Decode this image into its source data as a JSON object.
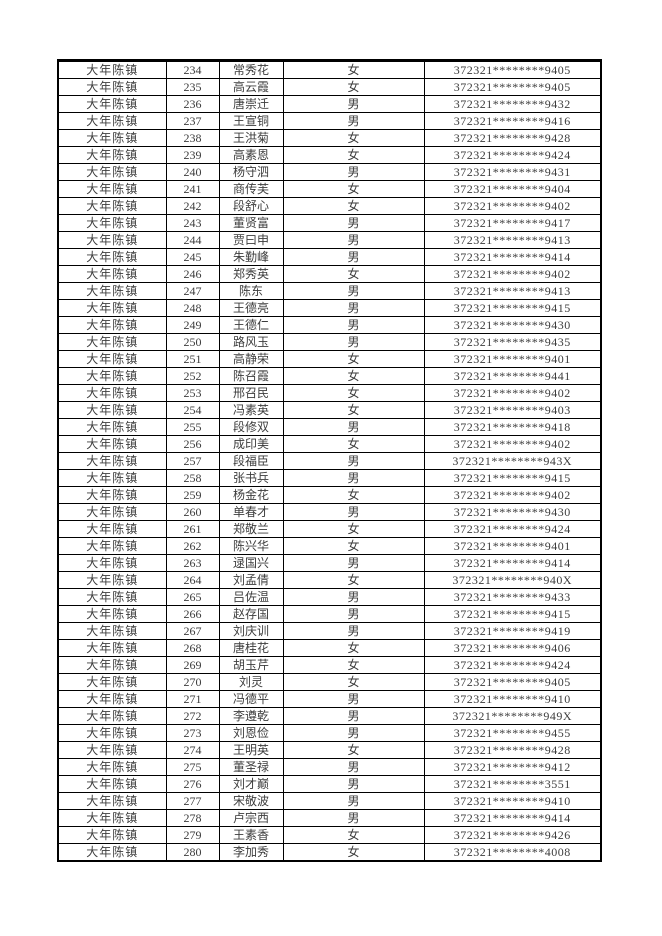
{
  "document": {
    "type": "scanned-roster-table",
    "town": "大年陈镇",
    "id_prefix": "372321",
    "id_mask": "********",
    "text_color": "#3d3d3d",
    "border_color": "#000000",
    "background_color": "#ffffff"
  },
  "table": {
    "columns": [
      "town",
      "serial",
      "name",
      "gender",
      "id_masked"
    ],
    "rows": [
      {
        "town": "大年陈镇",
        "no": "234",
        "name": "常秀花",
        "gender": "女",
        "id_masked": "372321********9405"
      },
      {
        "town": "大年陈镇",
        "no": "235",
        "name": "高云霞",
        "gender": "女",
        "id_masked": "372321********9405"
      },
      {
        "town": "大年陈镇",
        "no": "236",
        "name": "唐崇迁",
        "gender": "男",
        "id_masked": "372321********9432"
      },
      {
        "town": "大年陈镇",
        "no": "237",
        "name": "王宣铜",
        "gender": "男",
        "id_masked": "372321********9416"
      },
      {
        "town": "大年陈镇",
        "no": "238",
        "name": "王洪菊",
        "gender": "女",
        "id_masked": "372321********9428"
      },
      {
        "town": "大年陈镇",
        "no": "239",
        "name": "高素恩",
        "gender": "女",
        "id_masked": "372321********9424"
      },
      {
        "town": "大年陈镇",
        "no": "240",
        "name": "杨守泗",
        "gender": "男",
        "id_masked": "372321********9431"
      },
      {
        "town": "大年陈镇",
        "no": "241",
        "name": "商传芙",
        "gender": "女",
        "id_masked": "372321********9404"
      },
      {
        "town": "大年陈镇",
        "no": "242",
        "name": "段舒心",
        "gender": "女",
        "id_masked": "372321********9402"
      },
      {
        "town": "大年陈镇",
        "no": "243",
        "name": "董贤富",
        "gender": "男",
        "id_masked": "372321********9417"
      },
      {
        "town": "大年陈镇",
        "no": "244",
        "name": "贾曰申",
        "gender": "男",
        "id_masked": "372321********9413"
      },
      {
        "town": "大年陈镇",
        "no": "245",
        "name": "朱勤峰",
        "gender": "男",
        "id_masked": "372321********9414"
      },
      {
        "town": "大年陈镇",
        "no": "246",
        "name": "郑秀英",
        "gender": "女",
        "id_masked": "372321********9402"
      },
      {
        "town": "大年陈镇",
        "no": "247",
        "name": "陈东",
        "gender": "男",
        "id_masked": "372321********9413"
      },
      {
        "town": "大年陈镇",
        "no": "248",
        "name": "王德亮",
        "gender": "男",
        "id_masked": "372321********9415"
      },
      {
        "town": "大年陈镇",
        "no": "249",
        "name": "王德仁",
        "gender": "男",
        "id_masked": "372321********9430"
      },
      {
        "town": "大年陈镇",
        "no": "250",
        "name": "路风玉",
        "gender": "男",
        "id_masked": "372321********9435"
      },
      {
        "town": "大年陈镇",
        "no": "251",
        "name": "高静荣",
        "gender": "女",
        "id_masked": "372321********9401"
      },
      {
        "town": "大年陈镇",
        "no": "252",
        "name": "陈召霞",
        "gender": "女",
        "id_masked": "372321********9441"
      },
      {
        "town": "大年陈镇",
        "no": "253",
        "name": "邢召民",
        "gender": "女",
        "id_masked": "372321********9402"
      },
      {
        "town": "大年陈镇",
        "no": "254",
        "name": "冯素英",
        "gender": "女",
        "id_masked": "372321********9403"
      },
      {
        "town": "大年陈镇",
        "no": "255",
        "name": "段修双",
        "gender": "男",
        "id_masked": "372321********9418"
      },
      {
        "town": "大年陈镇",
        "no": "256",
        "name": "成印美",
        "gender": "女",
        "id_masked": "372321********9402"
      },
      {
        "town": "大年陈镇",
        "no": "257",
        "name": "段福臣",
        "gender": "男",
        "id_masked": "372321********943X"
      },
      {
        "town": "大年陈镇",
        "no": "258",
        "name": "张书兵",
        "gender": "男",
        "id_masked": "372321********9415"
      },
      {
        "town": "大年陈镇",
        "no": "259",
        "name": "杨金花",
        "gender": "女",
        "id_masked": "372321********9402"
      },
      {
        "town": "大年陈镇",
        "no": "260",
        "name": "单春才",
        "gender": "男",
        "id_masked": "372321********9430"
      },
      {
        "town": "大年陈镇",
        "no": "261",
        "name": "郑敬兰",
        "gender": "女",
        "id_masked": "372321********9424"
      },
      {
        "town": "大年陈镇",
        "no": "262",
        "name": "陈兴华",
        "gender": "女",
        "id_masked": "372321********9401"
      },
      {
        "town": "大年陈镇",
        "no": "263",
        "name": "逯国兴",
        "gender": "男",
        "id_masked": "372321********9414"
      },
      {
        "town": "大年陈镇",
        "no": "264",
        "name": "刘孟倩",
        "gender": "女",
        "id_masked": "372321********940X"
      },
      {
        "town": "大年陈镇",
        "no": "265",
        "name": "吕佐温",
        "gender": "男",
        "id_masked": "372321********9433"
      },
      {
        "town": "大年陈镇",
        "no": "266",
        "name": "赵存国",
        "gender": "男",
        "id_masked": "372321********9415"
      },
      {
        "town": "大年陈镇",
        "no": "267",
        "name": "刘庆训",
        "gender": "男",
        "id_masked": "372321********9419"
      },
      {
        "town": "大年陈镇",
        "no": "268",
        "name": "唐桂花",
        "gender": "女",
        "id_masked": "372321********9406"
      },
      {
        "town": "大年陈镇",
        "no": "269",
        "name": "胡玉芹",
        "gender": "女",
        "id_masked": "372321********9424"
      },
      {
        "town": "大年陈镇",
        "no": "270",
        "name": "刘灵",
        "gender": "女",
        "id_masked": "372321********9405"
      },
      {
        "town": "大年陈镇",
        "no": "271",
        "name": "冯德平",
        "gender": "男",
        "id_masked": "372321********9410"
      },
      {
        "town": "大年陈镇",
        "no": "272",
        "name": "李遵乾",
        "gender": "男",
        "id_masked": "372321********949X"
      },
      {
        "town": "大年陈镇",
        "no": "273",
        "name": "刘恩俭",
        "gender": "男",
        "id_masked": "372321********9455"
      },
      {
        "town": "大年陈镇",
        "no": "274",
        "name": "王明英",
        "gender": "女",
        "id_masked": "372321********9428"
      },
      {
        "town": "大年陈镇",
        "no": "275",
        "name": "董圣禄",
        "gender": "男",
        "id_masked": "372321********9412"
      },
      {
        "town": "大年陈镇",
        "no": "276",
        "name": "刘才巅",
        "gender": "男",
        "id_masked": "372321********3551"
      },
      {
        "town": "大年陈镇",
        "no": "277",
        "name": "宋敬波",
        "gender": "男",
        "id_masked": "372321********9410"
      },
      {
        "town": "大年陈镇",
        "no": "278",
        "name": "卢宗西",
        "gender": "男",
        "id_masked": "372321********9414"
      },
      {
        "town": "大年陈镇",
        "no": "279",
        "name": "王素香",
        "gender": "女",
        "id_masked": "372321********9426"
      },
      {
        "town": "大年陈镇",
        "no": "280",
        "name": "李加秀",
        "gender": "女",
        "id_masked": "372321********4008"
      }
    ]
  }
}
